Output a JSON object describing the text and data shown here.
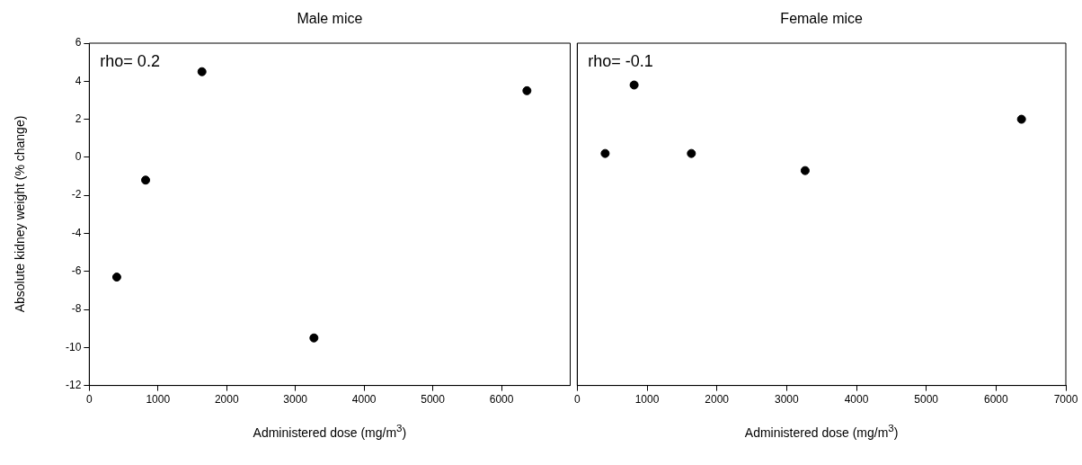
{
  "chart_data": [
    {
      "type": "scatter",
      "title": "Male mice",
      "xlabel": "Administered dose (mg/m$^{3}$)",
      "ylabel": "Absolute kidney weight (% change)",
      "annotations": [
        "rho= 0.2"
      ],
      "marker": "circle",
      "grid": false,
      "series": [
        {
          "color": "#000000",
          "x": [
            400,
            820,
            1640,
            3270,
            6370
          ],
          "values": [
            -6.3,
            -1.2,
            4.5,
            -9.5,
            3.5
          ]
        }
      ],
      "xlim": [
        0,
        7000
      ],
      "xticks": [
        0,
        1000,
        2000,
        3000,
        4000,
        5000,
        6000
      ],
      "ylim": [
        -12,
        6
      ],
      "yticks": [
        -12,
        -10,
        -8,
        -6,
        -4,
        -2,
        0,
        2,
        4,
        6
      ]
    },
    {
      "type": "scatter",
      "title": "Female mice",
      "xlabel": "Administered dose (mg/m$^{3}$)",
      "annotations": [
        "rho= -0.1"
      ],
      "marker": "circle",
      "grid": false,
      "tick_labels": "x",
      "series": [
        {
          "color": "#000000",
          "x": [
            400,
            815,
            1635,
            3265,
            6365
          ],
          "values": [
            0.2,
            3.8,
            0.2,
            -0.7,
            2.0
          ]
        }
      ],
      "xlim": [
        0,
        7000
      ],
      "xticks": [
        0,
        1000,
        2000,
        3000,
        4000,
        5000,
        6000,
        7000
      ],
      "ylim": [
        -12,
        6
      ]
    }
  ]
}
